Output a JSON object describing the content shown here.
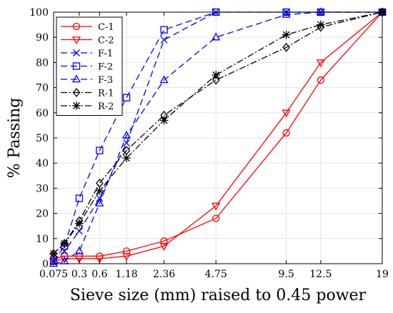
{
  "chart_data": {
    "type": "line",
    "title": "",
    "xlabel": "Sieve size (mm) raised to 0.45 power",
    "ylabel": "% Passing",
    "x_scale": "power 0.45",
    "xlim": [
      0.075,
      19
    ],
    "ylim": [
      0,
      100
    ],
    "x_ticks": [
      0.075,
      0.3,
      0.6,
      1.18,
      2.36,
      4.75,
      9.5,
      12.5,
      19
    ],
    "x_tick_labels": [
      "0.075",
      "0.3",
      "0.6",
      "1.18",
      "2.36",
      "4.75",
      "9.5",
      "12.5",
      "19"
    ],
    "y_ticks": [
      0,
      10,
      20,
      30,
      40,
      50,
      60,
      70,
      80,
      90,
      100
    ],
    "y_tick_labels": [
      "0",
      "10",
      "20",
      "30",
      "40",
      "50",
      "60",
      "70",
      "80",
      "90",
      "100"
    ],
    "grid": true,
    "legend_position": "top-left",
    "x": [
      0.075,
      0.15,
      0.3,
      0.6,
      1.18,
      2.36,
      4.75,
      9.5,
      12.5,
      19
    ],
    "series": [
      {
        "name": "C-1",
        "color": "#ff0000",
        "dash": "solid",
        "marker": "circle",
        "values": [
          2,
          3,
          3,
          3,
          5,
          9,
          18,
          52,
          73,
          100
        ]
      },
      {
        "name": "C-2",
        "color": "#ff0000",
        "dash": "solid",
        "marker": "triangle-down",
        "values": [
          1,
          2,
          2,
          2,
          3,
          7,
          23,
          60,
          80,
          100
        ]
      },
      {
        "name": "F-1",
        "color": "#0000ff",
        "dash": "dashed",
        "marker": "x",
        "values": [
          1,
          5,
          13,
          26,
          48,
          89,
          100,
          100,
          100,
          100
        ]
      },
      {
        "name": "F-2",
        "color": "#0000ff",
        "dash": "dashed",
        "marker": "square",
        "values": [
          1,
          7,
          26,
          45,
          66,
          93,
          100,
          100,
          100,
          100
        ]
      },
      {
        "name": "F-3",
        "color": "#0000ff",
        "dash": "dashed",
        "marker": "triangle-up",
        "values": [
          0,
          1,
          5,
          24,
          51,
          73,
          90,
          99,
          100,
          100
        ]
      },
      {
        "name": "R-1",
        "color": "#000000",
        "dash": "dashdot",
        "marker": "diamond",
        "values": [
          4,
          8,
          17,
          32,
          45,
          59,
          73,
          86,
          94,
          100
        ]
      },
      {
        "name": "R-2",
        "color": "#000000",
        "dash": "dashdot",
        "marker": "asterisk",
        "values": [
          4,
          8,
          16,
          29,
          42,
          57,
          75,
          91,
          95,
          100
        ]
      }
    ]
  }
}
